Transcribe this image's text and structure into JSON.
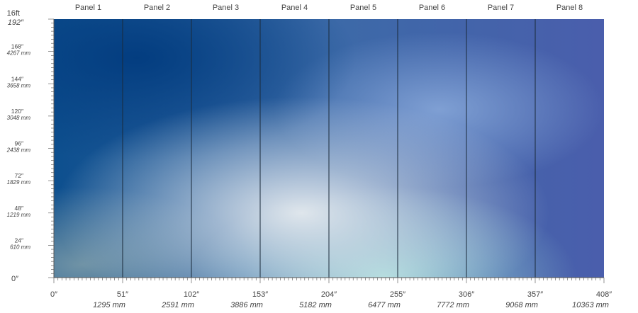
{
  "title": "16ft",
  "panels": [
    "Panel 1",
    "Panel 2",
    "Panel 3",
    "Panel 4",
    "Panel 5",
    "Panel 6",
    "Panel 7",
    "Panel 8"
  ],
  "height_labels": [
    {
      "inch": "192″"
    },
    {
      "inch": "168″",
      "mm": "4267 mm"
    },
    {
      "inch": "144″",
      "mm": "3658 mm"
    },
    {
      "inch": "120″",
      "mm": "3048 mm"
    },
    {
      "inch": "96″",
      "mm": "2438 mm"
    },
    {
      "inch": "72″",
      "mm": "1829 mm"
    },
    {
      "inch": "48″",
      "mm": "1219 mm"
    },
    {
      "inch": "24″",
      "mm": "610 mm"
    },
    {
      "inch": "0″"
    }
  ],
  "width_labels": [
    {
      "inch": "0″"
    },
    {
      "inch": "51″",
      "mm": "1295 mm"
    },
    {
      "inch": "102″",
      "mm": "2591 mm"
    },
    {
      "inch": "153″",
      "mm": "3886 mm"
    },
    {
      "inch": "204″",
      "mm": "5182 mm"
    },
    {
      "inch": "255″",
      "mm": "6477 mm"
    },
    {
      "inch": "306″",
      "mm": "7772 mm"
    },
    {
      "inch": "357″",
      "mm": "9068 mm"
    },
    {
      "inch": "408″",
      "mm": "10363 mm"
    }
  ]
}
